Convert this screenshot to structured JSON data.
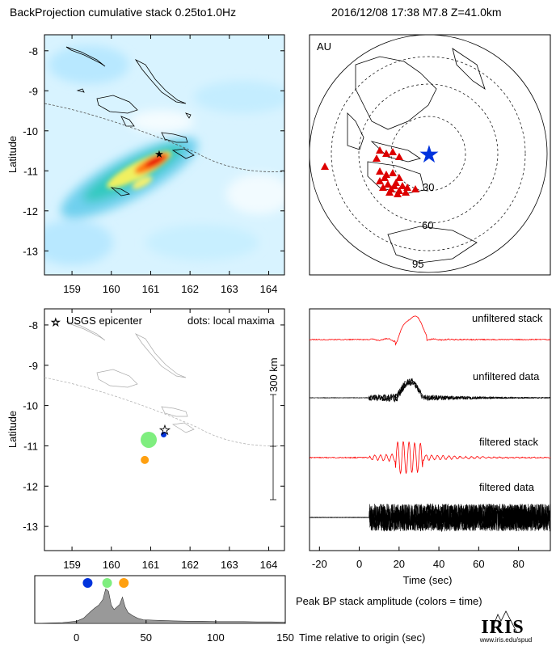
{
  "header": {
    "title": "BackProjection cumulative stack 0.25to1.0Hz",
    "event": "2016/12/08 17:38   M7.8   Z=41.0km"
  },
  "colors": {
    "stack_red": "#ff0000",
    "data_black": "#000000",
    "epicenter_blue": "#0033dd",
    "dot_green": "#7fee7f",
    "dot_orange": "#ffa010",
    "amp_fill": "#999999",
    "heat_cyan": "#aee6ff"
  },
  "chart_data": [
    {
      "type": "heatmap",
      "title": "BackProjection cumulative stack 0.25to1.0Hz",
      "xlabel": "",
      "ylabel": "Latitude",
      "xlim": [
        158.3,
        164.4
      ],
      "ylim": [
        -13.6,
        -7.6
      ],
      "x_ticks": [
        159,
        160,
        161,
        162,
        163,
        164
      ],
      "y_ticks": [
        -8,
        -9,
        -10,
        -11,
        -12,
        -13
      ],
      "epicenter": {
        "lon": 161.33,
        "lat": -10.68
      }
    },
    {
      "type": "scatter",
      "label": "AU",
      "distance_rings": [
        "30",
        "60",
        "95"
      ],
      "event_marker": "blue-star",
      "stations": "red-triangles"
    },
    {
      "type": "scatter",
      "ylabel": "Latitude",
      "xlim": [
        158.3,
        164.4
      ],
      "ylim": [
        -13.6,
        -7.6
      ],
      "x_ticks": [
        159,
        160,
        161,
        162,
        163,
        164
      ],
      "y_ticks": [
        -8,
        -9,
        -10,
        -11,
        -12,
        -13
      ],
      "legend": "USGS epicenter",
      "note": "dots: local maxima",
      "scale_bar": "300 km",
      "points": [
        {
          "lon": 161.33,
          "lat": -10.72,
          "time": 8,
          "size": 7,
          "color": "#0033dd"
        },
        {
          "lon": 160.95,
          "lat": -10.85,
          "time": 22,
          "size": 20,
          "color": "#7fee7f"
        },
        {
          "lon": 160.85,
          "lat": -11.35,
          "time": 34,
          "size": 10,
          "color": "#ffa010"
        }
      ],
      "epicenter": {
        "lon": 161.33,
        "lat": -10.65
      }
    },
    {
      "type": "line",
      "xlabel": "Time (sec)",
      "xlim": [
        -25,
        96
      ],
      "x_ticks": [
        -20,
        0,
        20,
        40,
        60,
        80
      ],
      "series": [
        {
          "name": "unfiltered stack"
        },
        {
          "name": "unfiltered data"
        },
        {
          "name": "filtered stack"
        },
        {
          "name": "filtered data"
        }
      ]
    },
    {
      "type": "area",
      "title": "Peak BP stack amplitude (colors = time)",
      "xlabel": "Time relative to origin (sec)",
      "xlim": [
        -30,
        150
      ],
      "x_ticks": [
        0,
        50,
        100,
        150
      ],
      "x": [
        -30,
        -10,
        0,
        5,
        10,
        13,
        16,
        19,
        21,
        23,
        25,
        27,
        29,
        31,
        33,
        35,
        37,
        40,
        44,
        48,
        55,
        62,
        70,
        80,
        90,
        100,
        110,
        120,
        130,
        140,
        150
      ],
      "values": [
        0.0,
        0.02,
        0.06,
        0.14,
        0.32,
        0.42,
        0.5,
        0.66,
        0.95,
        0.88,
        0.5,
        0.38,
        0.45,
        0.52,
        0.72,
        0.45,
        0.3,
        0.22,
        0.14,
        0.1,
        0.09,
        0.08,
        0.07,
        0.06,
        0.06,
        0.05,
        0.05,
        0.05,
        0.04,
        0.04,
        0.03
      ],
      "ylim": [
        0,
        1
      ],
      "dots": [
        {
          "t": 8,
          "color": "#0033dd"
        },
        {
          "t": 22,
          "color": "#7fee7f"
        },
        {
          "t": 34,
          "color": "#ffa010"
        }
      ]
    }
  ],
  "footer": {
    "logo": "IRIS",
    "url": "www.iris.edu/spud"
  }
}
